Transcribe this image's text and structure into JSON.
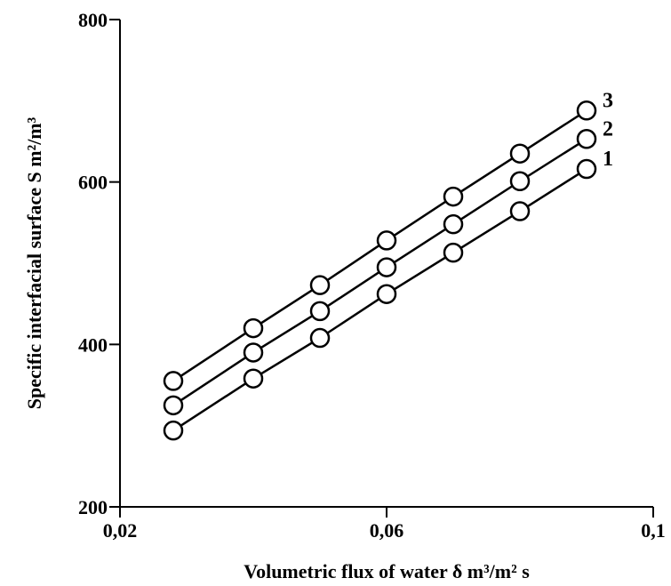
{
  "chart_data": {
    "type": "line",
    "title": "",
    "xlabel": "Volumetric flux of water δ m³/m² s",
    "ylabel": "Specific interfacial surface S m²/m³",
    "xlim": [
      0.02,
      0.1
    ],
    "ylim": [
      200,
      800
    ],
    "xticks": [
      {
        "value": 0.02,
        "label": "0,02"
      },
      {
        "value": 0.06,
        "label": "0,06"
      },
      {
        "value": 0.1,
        "label": "0,1"
      }
    ],
    "yticks": [
      {
        "value": 200,
        "label": "200"
      },
      {
        "value": 400,
        "label": "400"
      },
      {
        "value": 600,
        "label": "600"
      },
      {
        "value": 800,
        "label": "800"
      }
    ],
    "grid": false,
    "legend": "none",
    "x": [
      0.028,
      0.04,
      0.05,
      0.06,
      0.07,
      0.08,
      0.09
    ],
    "series": [
      {
        "name": "1",
        "values": [
          294,
          358,
          408,
          462,
          513,
          564,
          616
        ]
      },
      {
        "name": "2",
        "values": [
          325,
          390,
          441,
          495,
          548,
          601,
          653
        ]
      },
      {
        "name": "3",
        "values": [
          355,
          420,
          473,
          528,
          582,
          635,
          688
        ]
      }
    ]
  }
}
